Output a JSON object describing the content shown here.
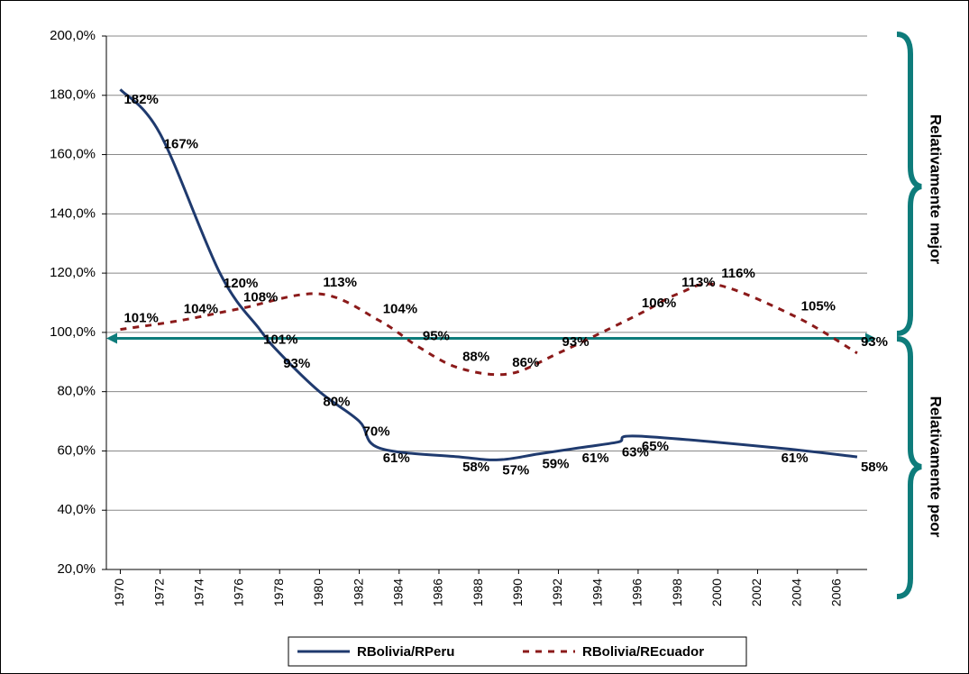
{
  "chart_data": {
    "type": "line",
    "ylim": [
      20,
      200
    ],
    "yticks": [
      {
        "value": 20,
        "label": "20,0%"
      },
      {
        "value": 40,
        "label": "40,0%"
      },
      {
        "value": 60,
        "label": "60,0%"
      },
      {
        "value": 80,
        "label": "80,0%"
      },
      {
        "value": 100,
        "label": "100,0%"
      },
      {
        "value": 120,
        "label": "120,0%"
      },
      {
        "value": 140,
        "label": "140,0%"
      },
      {
        "value": 160,
        "label": "160,0%"
      },
      {
        "value": 180,
        "label": "180,0%"
      },
      {
        "value": 200,
        "label": "200,0%"
      }
    ],
    "xlim": [
      1969.3,
      2007.5
    ],
    "xticks": [
      1970,
      1972,
      1974,
      1976,
      1978,
      1980,
      1982,
      1984,
      1986,
      1988,
      1990,
      1992,
      1994,
      1996,
      1998,
      2000,
      2002,
      2004,
      2006
    ],
    "grid": true,
    "reference_line": 98,
    "series": [
      {
        "name": "RBolivia/RPeru",
        "color": "#1f3a6e",
        "dashed": false,
        "x": [
          1970,
          1972,
          1975,
          1977,
          1978,
          1980,
          1982,
          1983,
          1987,
          1989,
          1991,
          1993,
          1995,
          1996,
          2003,
          2007
        ],
        "values": [
          182,
          167,
          120,
          101,
          93,
          80,
          70,
          61,
          58,
          57,
          59,
          61,
          63,
          65,
          61,
          58
        ],
        "value_labels": [
          "182%",
          "167%",
          "120%",
          "101%",
          "93%",
          "80%",
          "70%",
          "61%",
          "58%",
          "57%",
          "59%",
          "61%",
          "63%",
          "65%",
          "61%",
          "58%"
        ]
      },
      {
        "name": "RBolivia/REcuador",
        "color": "#8b1a1a",
        "dashed": true,
        "x": [
          1970,
          1973,
          1976,
          1980,
          1983,
          1985,
          1987,
          1989.5,
          1992,
          1996,
          1998,
          2000,
          2004,
          2007
        ],
        "values": [
          101,
          104,
          108,
          113,
          104,
          95,
          88,
          86,
          93,
          106,
          113,
          116,
          105,
          93
        ],
        "value_labels": [
          "101%",
          "104%",
          "108%",
          "113%",
          "104%",
          "95%",
          "88%",
          "86%",
          "93%",
          "106%",
          "113%",
          "116%",
          "105%",
          "93%"
        ]
      }
    ],
    "annotations": [
      "Relativamente mejor",
      "Relativamente peor"
    ]
  }
}
